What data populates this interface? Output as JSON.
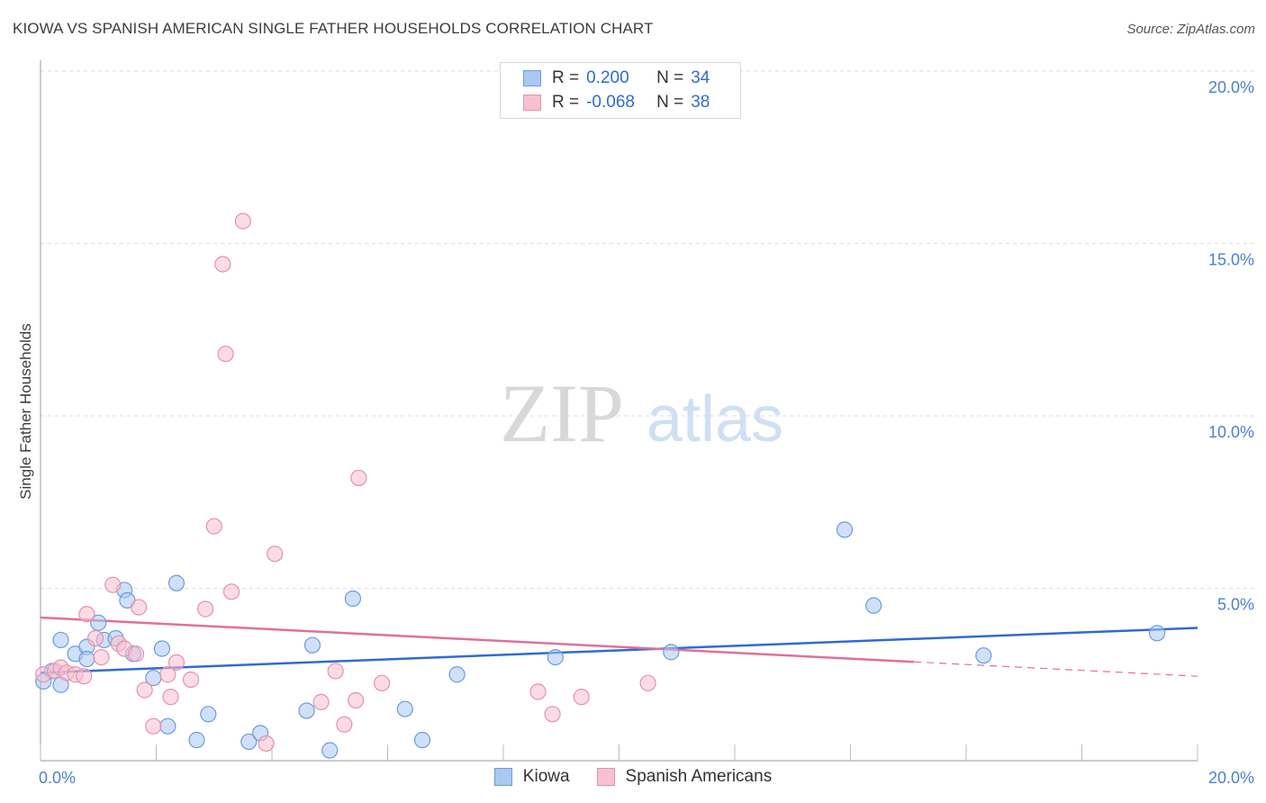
{
  "title": "KIOWA VS SPANISH AMERICAN SINGLE FATHER HOUSEHOLDS CORRELATION CHART",
  "source": "Source: ZipAtlas.com",
  "watermark": {
    "zip": "ZIP",
    "atlas": "atlas"
  },
  "legend": {
    "rows": [
      {
        "r_label": "R =",
        "r_value": "0.200",
        "n_label": "N =",
        "n_value": "34",
        "color": "#aac8f0",
        "border": "#6a9be0"
      },
      {
        "r_label": "R =",
        "r_value": "-0.068",
        "n_label": "N =",
        "n_value": "38",
        "color": "#f7c0d0",
        "border": "#e890ac"
      }
    ]
  },
  "chart_data": {
    "type": "scatter",
    "title": "KIOWA VS SPANISH AMERICAN SINGLE FATHER HOUSEHOLDS CORRELATION CHART",
    "xlabel": "",
    "ylabel": "Single Father Households",
    "xlim": [
      0,
      20
    ],
    "ylim": [
      0,
      20
    ],
    "x_tick_labels": [
      "0.0%",
      "20.0%"
    ],
    "y_tick_values": [
      5,
      10,
      15,
      20
    ],
    "y_tick_labels": [
      "5.0%",
      "10.0%",
      "15.0%",
      "20.0%"
    ],
    "grid": true,
    "series": [
      {
        "name": "Kiowa",
        "color": "#6a9be0",
        "fill": "#aac8f0",
        "line_color": "#2f6bd0",
        "trend": {
          "x0": 0,
          "y0": 2.55,
          "x1": 20,
          "y1": 3.85,
          "dash_from": null
        },
        "points": [
          [
            0.2,
            2.6
          ],
          [
            0.35,
            2.2
          ],
          [
            0.35,
            3.5
          ],
          [
            0.6,
            3.1
          ],
          [
            0.8,
            3.3
          ],
          [
            0.8,
            2.95
          ],
          [
            1.0,
            4.0
          ],
          [
            1.1,
            3.5
          ],
          [
            1.3,
            3.55
          ],
          [
            1.45,
            4.95
          ],
          [
            1.5,
            4.65
          ],
          [
            1.6,
            3.1
          ],
          [
            1.95,
            2.4
          ],
          [
            2.1,
            3.25
          ],
          [
            2.2,
            1.0
          ],
          [
            2.35,
            5.15
          ],
          [
            2.7,
            0.6
          ],
          [
            2.9,
            1.35
          ],
          [
            3.6,
            0.55
          ],
          [
            3.8,
            0.8
          ],
          [
            4.6,
            1.45
          ],
          [
            4.7,
            3.35
          ],
          [
            5.0,
            0.3
          ],
          [
            5.4,
            4.7
          ],
          [
            6.3,
            1.5
          ],
          [
            6.6,
            0.6
          ],
          [
            7.2,
            2.5
          ],
          [
            8.9,
            3.0
          ],
          [
            10.9,
            3.15
          ],
          [
            13.9,
            6.7
          ],
          [
            14.4,
            4.5
          ],
          [
            16.3,
            3.05
          ],
          [
            19.3,
            3.7
          ],
          [
            0.05,
            2.3
          ]
        ]
      },
      {
        "name": "Spanish Americans",
        "color": "#e890ac",
        "fill": "#f7c0d0",
        "line_color": "#e0709a",
        "trend": {
          "x0": 0,
          "y0": 4.15,
          "x1": 20,
          "y1": 2.45,
          "dash_from": 15.1
        },
        "points": [
          [
            0.05,
            2.5
          ],
          [
            0.25,
            2.6
          ],
          [
            0.35,
            2.7
          ],
          [
            0.45,
            2.55
          ],
          [
            0.6,
            2.5
          ],
          [
            0.75,
            2.45
          ],
          [
            0.8,
            4.25
          ],
          [
            0.95,
            3.55
          ],
          [
            1.05,
            3.0
          ],
          [
            1.25,
            5.1
          ],
          [
            1.35,
            3.4
          ],
          [
            1.45,
            3.25
          ],
          [
            1.65,
            3.1
          ],
          [
            1.7,
            4.45
          ],
          [
            1.8,
            2.05
          ],
          [
            1.95,
            1.0
          ],
          [
            2.2,
            2.5
          ],
          [
            2.25,
            1.85
          ],
          [
            2.35,
            2.85
          ],
          [
            2.6,
            2.35
          ],
          [
            2.85,
            4.4
          ],
          [
            3.0,
            6.8
          ],
          [
            3.15,
            14.4
          ],
          [
            3.2,
            11.8
          ],
          [
            3.3,
            4.9
          ],
          [
            3.5,
            15.65
          ],
          [
            3.9,
            0.5
          ],
          [
            4.05,
            6.0
          ],
          [
            4.85,
            1.7
          ],
          [
            5.1,
            2.6
          ],
          [
            5.25,
            1.05
          ],
          [
            5.45,
            1.75
          ],
          [
            5.5,
            8.2
          ],
          [
            5.9,
            2.25
          ],
          [
            8.6,
            2.0
          ],
          [
            8.85,
            1.35
          ],
          [
            9.35,
            1.85
          ],
          [
            10.5,
            2.25
          ]
        ]
      }
    ]
  },
  "bottom_legend": [
    {
      "label": "Kiowa",
      "color": "#aac8f0",
      "border": "#6a9be0"
    },
    {
      "label": "Spanish Americans",
      "color": "#f7c0d0",
      "border": "#e890ac"
    }
  ]
}
